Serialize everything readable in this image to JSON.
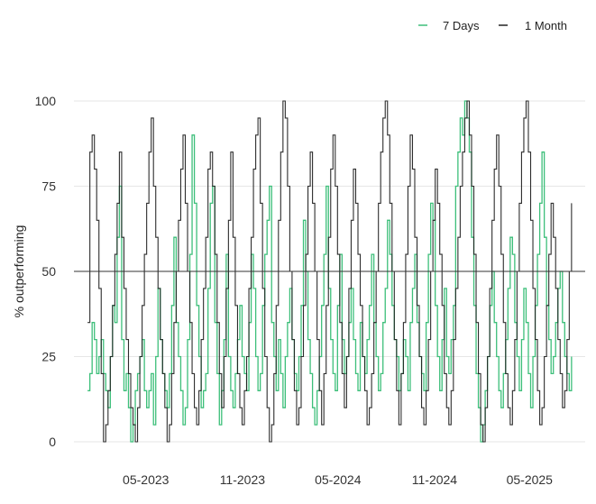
{
  "chart_data": {
    "type": "line",
    "title": "",
    "xlabel": "",
    "ylabel": "% outperforming",
    "ylim": [
      0,
      100
    ],
    "xlim": [
      "2022-12-15",
      "2025-08-15"
    ],
    "y_ticks": [
      "0",
      "25",
      "50",
      "75",
      "100"
    ],
    "x_ticks": [
      {
        "label": "05-2023",
        "date": "2023-05-01"
      },
      {
        "label": "11-2023",
        "date": "2023-11-01"
      },
      {
        "label": "05-2024",
        "date": "2024-05-01"
      },
      {
        "label": "11-2024",
        "date": "2024-11-01"
      },
      {
        "label": "05-2025",
        "date": "2025-05-01"
      }
    ],
    "reference_line": {
      "y": 50,
      "color": "#333333"
    },
    "grid": "horizontal",
    "legend_position": "top-right",
    "series": [
      {
        "name": "7 Days",
        "color": "#3dbf7a",
        "x_start": "2023-01-10",
        "x_end": "2025-07-20",
        "values": [
          15,
          20,
          35,
          30,
          20,
          25,
          30,
          20,
          15,
          10,
          25,
          40,
          35,
          60,
          75,
          30,
          15,
          20,
          10,
          0,
          5,
          15,
          20,
          25,
          30,
          15,
          10,
          15,
          20,
          5,
          25,
          45,
          30,
          20,
          15,
          10,
          20,
          40,
          60,
          35,
          25,
          15,
          5,
          10,
          30,
          55,
          90,
          70,
          40,
          25,
          10,
          15,
          20,
          45,
          70,
          75,
          35,
          20,
          5,
          15,
          30,
          55,
          25,
          15,
          10,
          20,
          30,
          40,
          25,
          20,
          15,
          35,
          55,
          45,
          25,
          15,
          20,
          40,
          55,
          65,
          75,
          35,
          25,
          15,
          30,
          20,
          10,
          25,
          35,
          45,
          30,
          20,
          15,
          25,
          40,
          65,
          50,
          30,
          20,
          10,
          5,
          15,
          25,
          40,
          55,
          75,
          45,
          30,
          20,
          15,
          40,
          55,
          30,
          20,
          25,
          35,
          45,
          30,
          20,
          15,
          35,
          25,
          20,
          30,
          40,
          55,
          35,
          25,
          15,
          20,
          35,
          45,
          65,
          55,
          40,
          30,
          25,
          15,
          20,
          30,
          25,
          15,
          35,
          45,
          55,
          35,
          25,
          20,
          15,
          35,
          55,
          70,
          65,
          40,
          25,
          15,
          30,
          45,
          25,
          20,
          30,
          40,
          75,
          85,
          95,
          90,
          100,
          95,
          85,
          60,
          40,
          20,
          10,
          0,
          5,
          15,
          25,
          40,
          50,
          35,
          25,
          15,
          10,
          20,
          30,
          45,
          60,
          55,
          35,
          25,
          15,
          30,
          45,
          35,
          20,
          10,
          25,
          40,
          55,
          70,
          85,
          60,
          40,
          30,
          20,
          25,
          35,
          45,
          50,
          35,
          25,
          20,
          15,
          25
        ]
      },
      {
        "name": "1 Month",
        "color": "#222222",
        "x_start": "2023-01-10",
        "x_end": "2025-07-20",
        "values": [
          35,
          85,
          90,
          80,
          65,
          45,
          20,
          0,
          5,
          15,
          25,
          40,
          55,
          70,
          85,
          60,
          45,
          30,
          20,
          10,
          5,
          0,
          10,
          25,
          40,
          55,
          70,
          85,
          95,
          75,
          60,
          45,
          30,
          20,
          10,
          0,
          5,
          20,
          35,
          50,
          65,
          80,
          90,
          70,
          50,
          35,
          20,
          10,
          5,
          15,
          30,
          45,
          60,
          80,
          85,
          75,
          55,
          35,
          20,
          10,
          25,
          45,
          65,
          85,
          60,
          40,
          20,
          10,
          5,
          15,
          25,
          45,
          60,
          80,
          90,
          95,
          70,
          45,
          25,
          10,
          0,
          5,
          20,
          40,
          65,
          85,
          100,
          95,
          75,
          50,
          30,
          15,
          5,
          10,
          25,
          40,
          55,
          75,
          85,
          70,
          50,
          30,
          15,
          5,
          20,
          40,
          60,
          80,
          90,
          75,
          55,
          35,
          20,
          10,
          25,
          45,
          65,
          80,
          70,
          55,
          40,
          25,
          15,
          5,
          10,
          20,
          35,
          50,
          70,
          85,
          95,
          100,
          90,
          70,
          50,
          30,
          15,
          5,
          20,
          35,
          55,
          75,
          90,
          80,
          60,
          40,
          25,
          10,
          5,
          15,
          30,
          50,
          65,
          80,
          70,
          55,
          40,
          20,
          10,
          5,
          15,
          30,
          45,
          60,
          75,
          85,
          95,
          100,
          90,
          75,
          55,
          35,
          20,
          5,
          0,
          10,
          25,
          45,
          65,
          80,
          90,
          75,
          55,
          35,
          20,
          10,
          5,
          15,
          30,
          50,
          70,
          85,
          95,
          100,
          85,
          65,
          45,
          30,
          15,
          5,
          10,
          25,
          40,
          55,
          70,
          60,
          45,
          30,
          20,
          10,
          15,
          30,
          50,
          70
        ]
      }
    ]
  }
}
